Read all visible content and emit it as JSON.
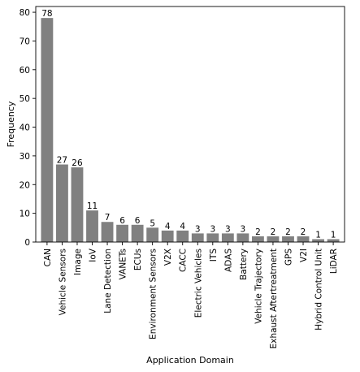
{
  "chart_data": {
    "type": "bar",
    "xlabel": "Application Domain",
    "ylabel": "Frequency",
    "ylim": [
      0,
      82
    ],
    "yticks": [
      0,
      10,
      20,
      30,
      40,
      50,
      60,
      70,
      80
    ],
    "grid": false,
    "bar_color": "#808080",
    "categories": [
      "CAN",
      "Vehicle Sensors",
      "Image",
      "IoV",
      "Lane Detection",
      "VANETs",
      "ECUs",
      "Environment Sensors",
      "V2X",
      "CACC",
      "Electric Vehicles",
      "ITS",
      "ADAS",
      "Battery",
      "Vehicle Trajectory",
      "Exhaust Aftertreatment",
      "GPS",
      "V2I",
      "Hybrid Control Unit",
      "LiDAR"
    ],
    "values": [
      78,
      27,
      26,
      11,
      7,
      6,
      6,
      5,
      4,
      4,
      3,
      3,
      3,
      3,
      2,
      2,
      2,
      2,
      1,
      1
    ]
  }
}
